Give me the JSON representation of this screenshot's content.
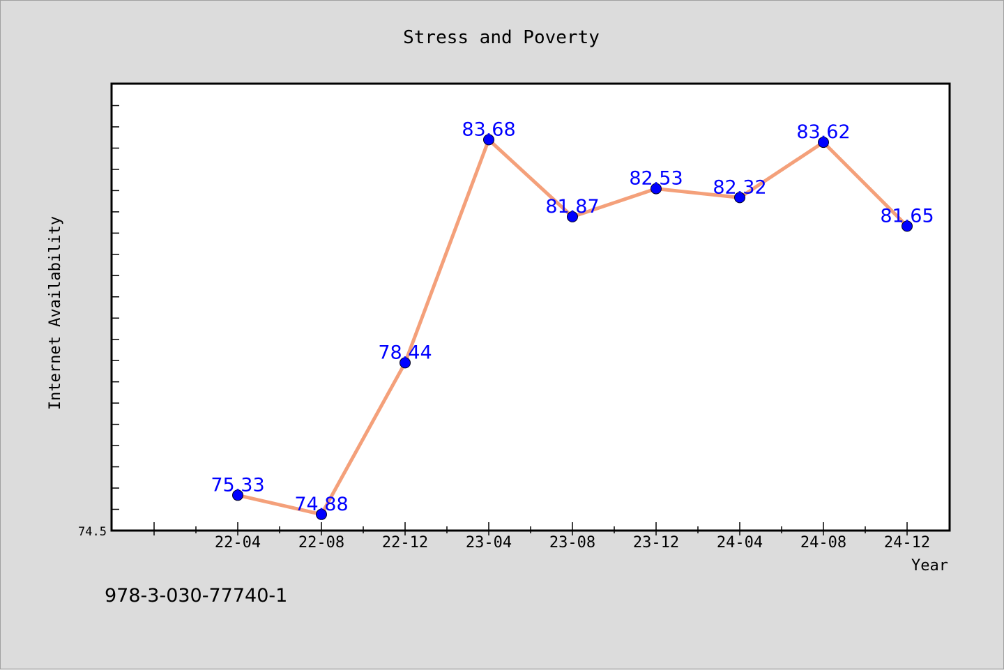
{
  "chart_data": {
    "type": "line",
    "title": "Stress and Poverty",
    "xlabel": "Year",
    "ylabel": "Internet Availability",
    "categories": [
      "22-04",
      "22-08",
      "22-12",
      "23-04",
      "23-08",
      "23-12",
      "24-04",
      "24-08",
      "24-12"
    ],
    "series": [
      {
        "values": [
          75.33,
          74.88,
          78.44,
          83.68,
          81.87,
          82.53,
          82.32,
          83.62,
          81.65
        ],
        "line_color": "#f4a07a",
        "marker_color": "#0000ff",
        "label_color": "#0000ff"
      }
    ],
    "ylim": [
      74.5,
      84.98
    ],
    "yticks_labeled": [
      "74.5"
    ],
    "grid": false,
    "legend": "none"
  },
  "footer_text": "978-3-030-77740-1"
}
